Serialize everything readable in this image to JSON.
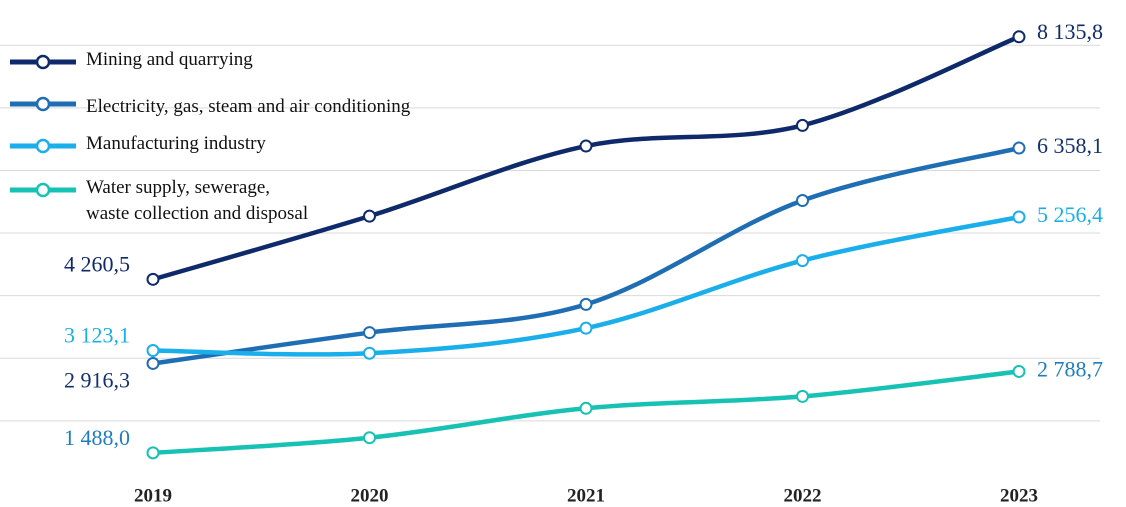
{
  "chart_data": {
    "type": "line",
    "categories": [
      "2019",
      "2020",
      "2021",
      "2022",
      "2023"
    ],
    "ylim": [
      1000,
      8500
    ],
    "yticks": [
      2000,
      3000,
      4000,
      5000,
      6000,
      7000,
      8000
    ],
    "grid": true,
    "legend": "top-left",
    "series": [
      {
        "name": "Mining and quarrying",
        "color": "#0f2a6b",
        "label_color": "#0f2a6b",
        "values": [
          4260.5,
          5270,
          6390,
          6720,
          8135.8
        ],
        "value_labels": [
          "4 260,5",
          null,
          null,
          null,
          "8 135,8"
        ]
      },
      {
        "name": "Electricity, gas, steam and air conditioning",
        "color": "#1f6db3",
        "label_color": "#14306e",
        "values": [
          2916.3,
          3410,
          3860,
          5520,
          6358.1
        ],
        "value_labels": [
          "2 916,3",
          null,
          null,
          null,
          "6 358,1"
        ]
      },
      {
        "name": "Manufacturing industry",
        "color": "#1aaeea",
        "label_color": "#1aaeea",
        "values": [
          3123.1,
          3080,
          3480,
          4560,
          5256.4
        ],
        "value_labels": [
          "3 123,1",
          null,
          null,
          null,
          "5 256,4"
        ]
      },
      {
        "name": "Water supply, sewerage,\nwaste collection and disposal",
        "color": "#17c2b4",
        "label_color": "#1f7cc0",
        "values": [
          1488.0,
          1730,
          2200,
          2390,
          2788.7
        ],
        "value_labels": [
          "1 488,0",
          null,
          null,
          null,
          "2 788,7"
        ]
      }
    ]
  }
}
